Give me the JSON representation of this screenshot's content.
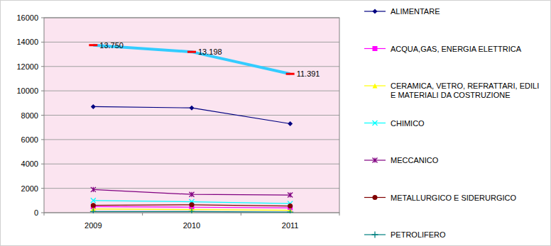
{
  "chart_data": {
    "type": "line",
    "categories": [
      "2009",
      "2010",
      "2011"
    ],
    "ylim": [
      0,
      16000
    ],
    "yticks": [
      0,
      2000,
      4000,
      6000,
      8000,
      10000,
      12000,
      14000,
      16000
    ],
    "grid": true,
    "legend": "right",
    "series": [
      {
        "name": "ALIMENTARE",
        "color": "#000080",
        "marker": "diamond",
        "values": [
          8700,
          8600,
          7300
        ]
      },
      {
        "name": "ACQUA,GAS, ENERGIA ELETTRICA",
        "color": "#ff00ff",
        "marker": "square",
        "values": [
          500,
          450,
          400
        ]
      },
      {
        "name": "CERAMICA, VETRO, REFRATTARI, EDILI E MATERIALI DA COSTRUZIONE",
        "color": "#ffff00",
        "marker": "triangle",
        "values": [
          300,
          250,
          200
        ]
      },
      {
        "name": "CHIMICO",
        "color": "#00ffff",
        "marker": "x",
        "values": [
          1000,
          900,
          750
        ]
      },
      {
        "name": "MECCANICO",
        "color": "#800080",
        "marker": "star",
        "values": [
          1900,
          1500,
          1450
        ]
      },
      {
        "name": "METALLURGICO E SIDERURGICO",
        "color": "#800000",
        "marker": "circle",
        "values": [
          600,
          650,
          550
        ]
      },
      {
        "name": "PETROLIFERO",
        "color": "#008080",
        "marker": "plus",
        "values": [
          100,
          100,
          50
        ]
      },
      {
        "color": "#33ccff",
        "marker": "dash",
        "data_labels": true,
        "values": [
          13750,
          13198,
          11391
        ],
        "value_labels": [
          "13.750",
          "13.198",
          "11.391"
        ]
      }
    ]
  }
}
